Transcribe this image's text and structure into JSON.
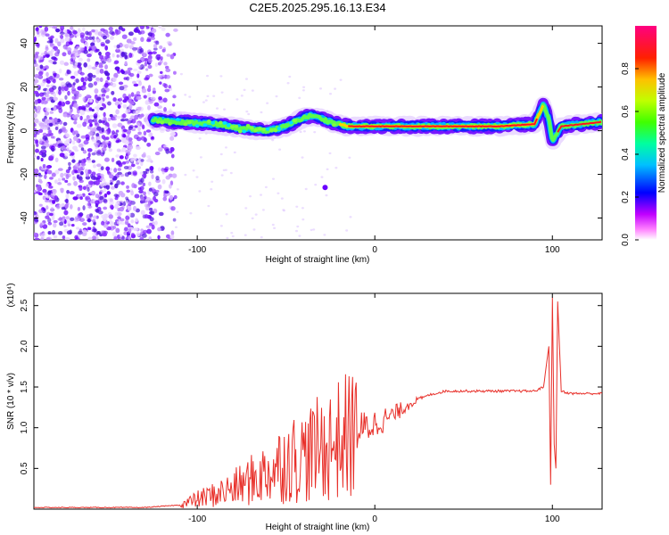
{
  "title": "C2E5.2025.295.16.13.E34",
  "chart_data": [
    {
      "type": "heatmap",
      "name": "spectrogram",
      "xlabel": "Height of straight line (km)",
      "ylabel": "Frequency (Hz)",
      "xlim": [
        -192,
        128
      ],
      "ylim": [
        -50,
        48
      ],
      "xticks": [
        -100,
        0,
        100
      ],
      "yticks": [
        -40,
        -20,
        0,
        20,
        40
      ],
      "colorbar": {
        "label": "Normalized spectral amplitude",
        "range": [
          0,
          1
        ],
        "ticks": [
          0.0,
          0.2,
          0.4,
          0.6,
          0.8
        ],
        "colors": [
          "#ffffff",
          "#ff00ff",
          "#6000ff",
          "#0000ff",
          "#00c0ff",
          "#00ff80",
          "#80ff00",
          "#ffff00",
          "#ff8000",
          "#ff0000",
          "#ff0080"
        ]
      },
      "annotations": [
        {
          "label": "signal track center frequency",
          "x": [
            -125,
            -110,
            -90,
            -75,
            -60,
            -50,
            -40,
            -35,
            -25,
            -15,
            -5,
            10,
            40,
            70,
            90,
            95,
            98,
            100,
            105,
            128
          ],
          "y": [
            5,
            4,
            3,
            1,
            0,
            2,
            6,
            7,
            4,
            2,
            2,
            2,
            2,
            2,
            3,
            12,
            5,
            -5,
            2,
            4
          ]
        }
      ]
    },
    {
      "type": "line",
      "name": "snr",
      "xlabel": "Height of straight line (km)",
      "ylabel": "SNR (10 * v/v)",
      "scale_label": "(x10⁴)",
      "xlim": [
        -192,
        128
      ],
      "ylim": [
        0,
        2.65
      ],
      "xticks": [
        -100,
        0,
        100
      ],
      "yticks": [
        0.5,
        1.0,
        1.5,
        2.0,
        2.5
      ],
      "series": [
        {
          "name": "SNR",
          "color": "#e8302a",
          "x": [
            -192,
            -130,
            -110,
            -100,
            -90,
            -80,
            -70,
            -60,
            -50,
            -40,
            -30,
            -20,
            -10,
            0,
            10,
            20,
            30,
            40,
            60,
            80,
            90,
            95,
            98,
            99,
            100,
            101,
            102,
            103,
            105,
            110,
            128
          ],
          "y": [
            0.02,
            0.02,
            0.05,
            0.12,
            0.18,
            0.25,
            0.35,
            0.45,
            0.6,
            0.65,
            0.75,
            0.85,
            0.95,
            1.05,
            1.15,
            1.3,
            1.4,
            1.45,
            1.45,
            1.45,
            1.45,
            1.5,
            2.0,
            0.3,
            2.6,
            0.8,
            0.5,
            2.55,
            1.45,
            1.42,
            1.42
          ]
        }
      ]
    }
  ]
}
